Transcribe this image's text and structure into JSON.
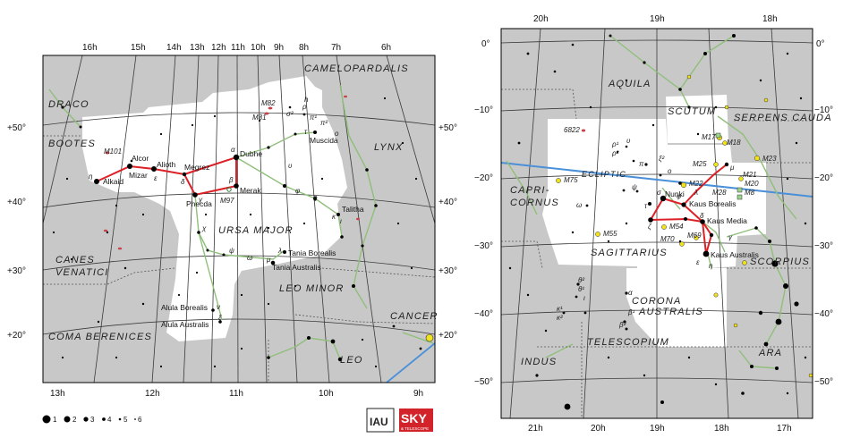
{
  "left_map": {
    "ra_labels": [
      "16h",
      "15h",
      "14h",
      "13h",
      "12h",
      "11h",
      "10h",
      "9h",
      "8h",
      "7h",
      "6h"
    ],
    "ra_labels_bottom": [
      "13h",
      "12h",
      "11h",
      "10h",
      "9h"
    ],
    "dec_labels_left": [
      "+50°",
      "+40°",
      "+30°",
      "+20°"
    ],
    "dec_labels_right": [
      "+50°",
      "+40°",
      "+30°",
      "+20°"
    ],
    "constellations": [
      "CAMELOPARDALIS",
      "DRACO",
      "BOOTES",
      "LYNX",
      "URSA MAJOR",
      "CANES",
      "VENATICI",
      "LEO MINOR",
      "CANCER",
      "COMA BERENICES",
      "LEO"
    ],
    "stars": [
      "Alcor",
      "Mizar",
      "Alkaid",
      "Alioth",
      "Megrez",
      "Dubhe",
      "Merak",
      "Phecda",
      "Muscida",
      "Talitha",
      "Tania Borealis",
      "Tania Australis",
      "Alula Borealis",
      "Alula Australis"
    ],
    "greek": [
      "η",
      "ε",
      "δ",
      "α",
      "β",
      "γ",
      "ψ",
      "χ",
      "ω",
      "λ",
      "μ",
      "ν",
      "ξ",
      "υ",
      "φ",
      "θ",
      "ι",
      "κ",
      "o",
      "π²",
      "σ²",
      "ρ",
      "π¹",
      "τ",
      "h"
    ],
    "objects": [
      "M101",
      "M82",
      "M81",
      "M97"
    ]
  },
  "right_map": {
    "ra_labels": [
      "20h",
      "19h",
      "18h"
    ],
    "ra_labels_bottom": [
      "21h",
      "20h",
      "19h",
      "18h",
      "17h"
    ],
    "dec_labels_left": [
      "0°",
      "−10°",
      "−20°",
      "−30°",
      "−40°",
      "−50°"
    ],
    "dec_labels_right": [
      "0°",
      "−10°",
      "−20°",
      "−30°",
      "−40°",
      "−50°"
    ],
    "constellations": [
      "AQUILA",
      "SCUTUM",
      "SERPENS CAUDA",
      "CAPRI-",
      "CORNUS",
      "SAGITTARIUS",
      "SCORPIUS",
      "CORONA",
      "AUSTRALIS",
      "TELESCOPIUM",
      "INDUS",
      "ARA"
    ],
    "ecliptic_label": "ECLIPTIC",
    "stars": [
      "Nunki",
      "Kaus Borealis",
      "Kaus Media",
      "Kaus Australis"
    ],
    "greek": [
      "ρ¹",
      "ρ²",
      "υ",
      "π",
      "ξ²",
      "ο",
      "ψ",
      "ω",
      "τ",
      "σ",
      "φ",
      "λ",
      "μ",
      "δ",
      "γ",
      "η",
      "ε",
      "ζ",
      "θ¹",
      "θ²",
      "ι",
      "α",
      "β¹",
      "β²",
      "κ¹",
      "κ²"
    ],
    "objects": [
      "6822",
      "M17",
      "M18",
      "M23",
      "M25",
      "M21",
      "M20",
      "M8",
      "M22",
      "M28",
      "M55",
      "M75",
      "M54",
      "M70",
      "M69"
    ]
  },
  "legend": {
    "magnitudes": [
      "1",
      "2",
      "3",
      "4",
      "5",
      "6"
    ],
    "logo_iau": "IAU",
    "logo_sky": "SKY",
    "logo_sub": "& TELESCOPE"
  },
  "colors": {
    "sky_gray": "#c8c8c8",
    "const_white": "#ffffff",
    "stick_red": "#dd1f26",
    "const_line_green": "#8fbf7a",
    "ecliptic_blue": "#4a90d9",
    "grid_line": "#333333",
    "star_black": "#000000",
    "cluster_yellow": "#f2e21e"
  }
}
